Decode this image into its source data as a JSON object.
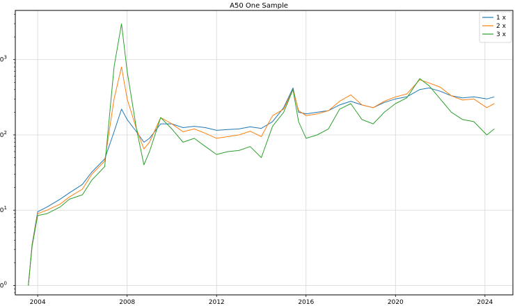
{
  "chart_data": {
    "type": "line",
    "title": "A50 One Sample",
    "xlabel": "",
    "ylabel": "",
    "yscale": "log",
    "xlim": [
      "2003-01-01",
      "2025-04-01"
    ],
    "ylim": [
      0.75,
      4500
    ],
    "grid": true,
    "legend_position": "top-right",
    "x_ticks": [
      "2004",
      "2008",
      "2012",
      "2016",
      "2020",
      "2024"
    ],
    "y_ticks": [
      "10^0",
      "10^1",
      "10^2",
      "10^3"
    ],
    "x": [
      "2003-08",
      "2003-10",
      "2004-01",
      "2004-06",
      "2005-01",
      "2005-06",
      "2006-01",
      "2006-06",
      "2007-01",
      "2007-06",
      "2007-10",
      "2008-01",
      "2008-06",
      "2008-10",
      "2009-01",
      "2009-07",
      "2010-01",
      "2010-07",
      "2011-01",
      "2011-07",
      "2012-01",
      "2012-07",
      "2013-01",
      "2013-07",
      "2014-01",
      "2014-07",
      "2015-01",
      "2015-06",
      "2015-09",
      "2016-01",
      "2016-07",
      "2017-01",
      "2017-07",
      "2018-01",
      "2018-07",
      "2019-01",
      "2019-07",
      "2020-01",
      "2020-07",
      "2021-02",
      "2021-07",
      "2022-01",
      "2022-07",
      "2023-01",
      "2023-07",
      "2024-02",
      "2024-06"
    ],
    "series": [
      {
        "name": "1 x",
        "color": "#1f77b4",
        "values": [
          1.0,
          3.5,
          9.5,
          11,
          14,
          17,
          22,
          32,
          48,
          110,
          220,
          160,
          110,
          80,
          90,
          140,
          140,
          125,
          130,
          125,
          115,
          118,
          120,
          128,
          122,
          150,
          230,
          420,
          200,
          190,
          200,
          210,
          250,
          280,
          250,
          230,
          270,
          300,
          320,
          400,
          420,
          380,
          330,
          310,
          320,
          300,
          320
        ]
      },
      {
        "name": "2 x",
        "color": "#ff7f0e",
        "values": [
          1.0,
          3.4,
          9.0,
          10,
          12,
          15,
          19,
          30,
          45,
          300,
          800,
          300,
          120,
          65,
          80,
          170,
          140,
          110,
          120,
          105,
          90,
          95,
          100,
          112,
          95,
          180,
          220,
          400,
          210,
          180,
          190,
          210,
          280,
          340,
          250,
          230,
          280,
          320,
          350,
          540,
          490,
          430,
          330,
          290,
          300,
          230,
          260
        ]
      },
      {
        "name": "3 x",
        "color": "#2ca02c",
        "values": [
          1.0,
          3.3,
          8.5,
          9,
          11,
          14,
          16,
          25,
          38,
          800,
          3000,
          700,
          120,
          40,
          60,
          170,
          120,
          80,
          90,
          70,
          55,
          60,
          62,
          70,
          50,
          130,
          200,
          400,
          150,
          90,
          100,
          120,
          220,
          260,
          160,
          140,
          200,
          260,
          310,
          560,
          450,
          300,
          200,
          160,
          150,
          100,
          120
        ]
      }
    ]
  }
}
